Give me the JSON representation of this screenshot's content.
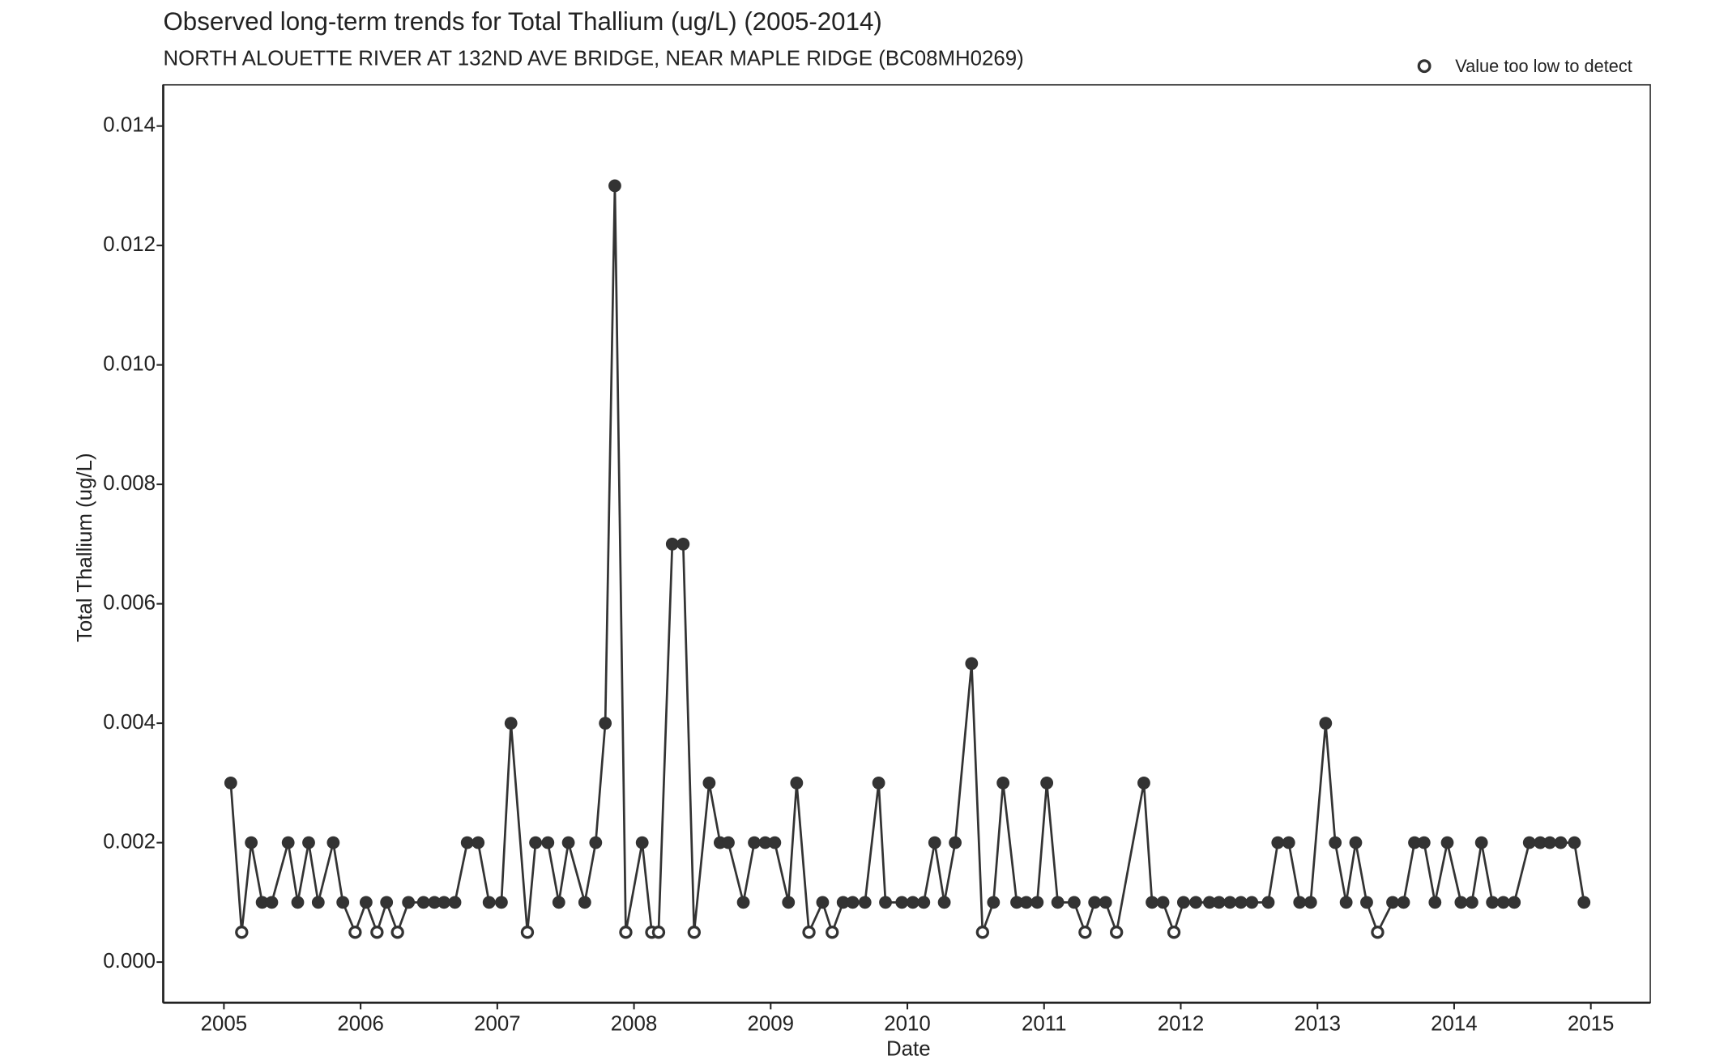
{
  "chart_data": {
    "type": "line",
    "title": "Observed long-term trends for Total Thallium (ug/L) (2005-2014)",
    "subtitle": "NORTH ALOUETTE RIVER AT 132ND AVE BRIDGE, NEAR MAPLE RIDGE (BC08MH0269)",
    "x_label": "Date",
    "y_label": "Total Thallium (ug/L)",
    "legend_label": "Value too low to detect",
    "legend_position": "top-right",
    "color": "#333333",
    "xlim": [
      2004.556,
      2015.435
    ],
    "xticks": [
      2005,
      2006,
      2007,
      2008,
      2009,
      2010,
      2011,
      2012,
      2013,
      2014,
      2015
    ],
    "ylim": [
      -0.00068,
      0.01469
    ],
    "yticks": [
      {
        "value": 0,
        "label": "0.000"
      },
      0.002,
      0.004,
      0.006,
      0.008,
      {
        "value": 0.01,
        "label": "0.010"
      },
      0.012,
      0.014
    ],
    "x": [
      2005.05,
      2005.13,
      2005.2,
      2005.28,
      2005.35,
      2005.47,
      2005.54,
      2005.62,
      2005.69,
      2005.8,
      2005.87,
      2005.96,
      2006.04,
      2006.12,
      2006.19,
      2006.27,
      2006.35,
      2006.46,
      2006.54,
      2006.61,
      2006.69,
      2006.78,
      2006.86,
      2006.94,
      2007.03,
      2007.1,
      2007.22,
      2007.28,
      2007.37,
      2007.45,
      2007.52,
      2007.64,
      2007.72,
      2007.79,
      2007.86,
      2007.94,
      2008.06,
      2008.13,
      2008.18,
      2008.28,
      2008.36,
      2008.44,
      2008.55,
      2008.63,
      2008.69,
      2008.8,
      2008.88,
      2008.96,
      2009.03,
      2009.13,
      2009.19,
      2009.28,
      2009.38,
      2009.45,
      2009.53,
      2009.6,
      2009.69,
      2009.79,
      2009.84,
      2009.96,
      2010.04,
      2010.12,
      2010.2,
      2010.27,
      2010.35,
      2010.47,
      2010.55,
      2010.63,
      2010.7,
      2010.8,
      2010.87,
      2010.95,
      2011.02,
      2011.1,
      2011.22,
      2011.3,
      2011.37,
      2011.45,
      2011.53,
      2011.73,
      2011.79,
      2011.87,
      2011.95,
      2012.02,
      2012.11,
      2012.21,
      2012.28,
      2012.36,
      2012.44,
      2012.52,
      2012.64,
      2012.71,
      2012.79,
      2012.87,
      2012.95,
      2013.06,
      2013.13,
      2013.21,
      2013.28,
      2013.36,
      2013.44,
      2013.55,
      2013.63,
      2013.71,
      2013.78,
      2013.86,
      2013.95,
      2014.05,
      2014.13,
      2014.2,
      2014.28,
      2014.36,
      2014.44,
      2014.55,
      2014.63,
      2014.7,
      2014.78,
      2014.88,
      2014.95
    ],
    "values": [
      0.003,
      0.0005,
      0.002,
      0.001,
      0.001,
      0.002,
      0.001,
      0.002,
      0.001,
      0.002,
      0.001,
      0.0005,
      0.001,
      0.0005,
      0.001,
      0.0005,
      0.001,
      0.001,
      0.001,
      0.001,
      0.001,
      0.002,
      0.002,
      0.001,
      0.001,
      0.004,
      0.0005,
      0.002,
      0.002,
      0.001,
      0.002,
      0.001,
      0.002,
      0.004,
      0.013,
      0.0005,
      0.002,
      0.0005,
      0.0005,
      0.007,
      0.007,
      0.0005,
      0.003,
      0.002,
      0.002,
      0.001,
      0.002,
      0.002,
      0.002,
      0.001,
      0.003,
      0.0005,
      0.001,
      0.0005,
      0.001,
      0.001,
      0.001,
      0.003,
      0.001,
      0.001,
      0.001,
      0.001,
      0.002,
      0.001,
      0.002,
      0.005,
      0.0005,
      0.001,
      0.003,
      0.001,
      0.001,
      0.001,
      0.003,
      0.001,
      0.001,
      0.0005,
      0.001,
      0.001,
      0.0005,
      0.003,
      0.001,
      0.001,
      0.0005,
      0.001,
      0.001,
      0.001,
      0.001,
      0.001,
      0.001,
      0.001,
      0.001,
      0.002,
      0.002,
      0.001,
      0.001,
      0.004,
      0.002,
      0.001,
      0.002,
      0.001,
      0.0005,
      0.001,
      0.001,
      0.002,
      0.002,
      0.001,
      0.002,
      0.001,
      0.001,
      0.002,
      0.001,
      0.001,
      0.001,
      0.002,
      0.002,
      0.002,
      0.002,
      0.002,
      0.001
    ],
    "below_detection": [
      false,
      true,
      false,
      false,
      false,
      false,
      false,
      false,
      false,
      false,
      false,
      true,
      false,
      true,
      false,
      true,
      false,
      false,
      false,
      false,
      false,
      false,
      false,
      false,
      false,
      false,
      true,
      false,
      false,
      false,
      false,
      false,
      false,
      false,
      false,
      true,
      false,
      true,
      true,
      false,
      false,
      true,
      false,
      false,
      false,
      false,
      false,
      false,
      false,
      false,
      false,
      true,
      false,
      true,
      false,
      false,
      false,
      false,
      false,
      false,
      false,
      false,
      false,
      false,
      false,
      false,
      true,
      false,
      false,
      false,
      false,
      false,
      false,
      false,
      false,
      true,
      false,
      false,
      true,
      false,
      false,
      false,
      true,
      false,
      false,
      false,
      false,
      false,
      false,
      false,
      false,
      false,
      false,
      false,
      false,
      false,
      false,
      false,
      false,
      false,
      true,
      false,
      false,
      false,
      false,
      false,
      false,
      false,
      false,
      false,
      false,
      false,
      false,
      false,
      false,
      false,
      false,
      false,
      false
    ]
  }
}
